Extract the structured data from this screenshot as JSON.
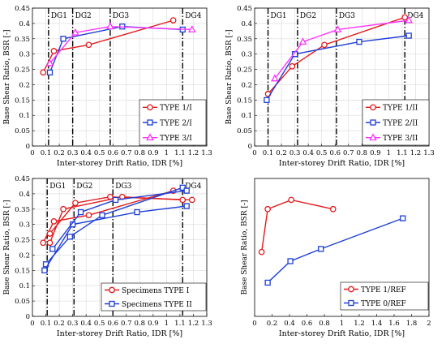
{
  "colors": {
    "red": "#e41a1c",
    "blue": "#1f3fd6",
    "magenta": "#ff33ff",
    "dg_line": "#000000"
  },
  "chart_data": [
    {
      "type": "line",
      "title": "",
      "xlabel": "Inter-storey Drift Ratio, IDR [%]",
      "ylabel": "Base Shear Ratio, BSR [-]",
      "xlim": [
        0,
        1.3
      ],
      "ylim": [
        0,
        0.45
      ],
      "xticks": [
        "0",
        "0.1",
        "0.2",
        "0.3",
        "0.4",
        "0.5",
        "0.6",
        "0.7",
        "0.8",
        "0.9",
        "1",
        "1.1",
        "1.2",
        "1.3"
      ],
      "yticks": [
        "0",
        "0.05",
        "0.1",
        "0.15",
        "0.2",
        "0.25",
        "0.3",
        "0.35",
        "0.4",
        "0.45"
      ],
      "grid": true,
      "legend_position": "bottom-right",
      "damage_lines": [
        {
          "label": "DG1",
          "x": 0.12
        },
        {
          "label": "DG2",
          "x": 0.3
        },
        {
          "label": "DG3",
          "x": 0.58
        },
        {
          "label": "DG4",
          "x": 1.12
        }
      ],
      "series": [
        {
          "name": "TYPE 1/I",
          "color": "#e41a1c",
          "marker": "circle",
          "x": [
            0.08,
            0.16,
            0.42,
            1.05
          ],
          "y": [
            0.24,
            0.31,
            0.33,
            0.41
          ]
        },
        {
          "name": "TYPE 2/I",
          "color": "#1f3fd6",
          "marker": "square",
          "x": [
            0.13,
            0.23,
            0.67,
            1.12
          ],
          "y": [
            0.24,
            0.35,
            0.39,
            0.38
          ]
        },
        {
          "name": "TYPE 3/I",
          "color": "#ff33ff",
          "marker": "triangle",
          "x": [
            0.13,
            0.32,
            0.58,
            1.19
          ],
          "y": [
            0.27,
            0.37,
            0.39,
            0.38
          ]
        }
      ]
    },
    {
      "type": "line",
      "title": "",
      "xlabel": "Inter-storey Drift Ratio, IDR [%]",
      "ylabel": "Base Shear Ratio, BSR [-]",
      "xlim": [
        0,
        1.3
      ],
      "ylim": [
        0,
        0.45
      ],
      "xticks": [
        "0",
        "0.1",
        "0.2",
        "0.3",
        "0.4",
        "0.5",
        "0.6",
        "0.7",
        "0.8",
        "0.9",
        "1",
        "1.1",
        "1.2",
        "1.3"
      ],
      "yticks": [
        "0",
        "0.05",
        "0.1",
        "0.15",
        "0.2",
        "0.25",
        "0.3",
        "0.35",
        "0.4",
        "0.45"
      ],
      "grid": true,
      "legend_position": "bottom-right",
      "damage_lines": [
        {
          "label": "DG1",
          "x": 0.1
        },
        {
          "label": "DG2",
          "x": 0.32
        },
        {
          "label": "DG3",
          "x": 0.61
        },
        {
          "label": "DG4",
          "x": 1.12
        }
      ],
      "series": [
        {
          "name": "TYPE 1/II",
          "color": "#e41a1c",
          "marker": "circle",
          "x": [
            0.1,
            0.28,
            0.52,
            1.12
          ],
          "y": [
            0.17,
            0.26,
            0.33,
            0.42
          ]
        },
        {
          "name": "TYPE 2/II",
          "color": "#1f3fd6",
          "marker": "square",
          "x": [
            0.09,
            0.3,
            0.78,
            1.15
          ],
          "y": [
            0.15,
            0.3,
            0.34,
            0.36
          ]
        },
        {
          "name": "TYPE 3/II",
          "color": "#ff33ff",
          "marker": "triangle",
          "x": [
            0.15,
            0.36,
            0.62,
            1.15
          ],
          "y": [
            0.22,
            0.34,
            0.38,
            0.41
          ]
        }
      ]
    },
    {
      "type": "line",
      "title": "",
      "xlabel": "Inter-storey Drift Ratio, IDR [%]",
      "ylabel": "Base Shear Ratio, BSR [-]",
      "xlim": [
        0,
        1.3
      ],
      "ylim": [
        0,
        0.45
      ],
      "xticks": [
        "0",
        "0.1",
        "0.2",
        "0.3",
        "0.4",
        "0.5",
        "0.6",
        "0.7",
        "0.8",
        "0.9",
        "1",
        "1.1",
        "1.2",
        "1.3"
      ],
      "yticks": [
        "0",
        "0.05",
        "0.1",
        "0.15",
        "0.2",
        "0.25",
        "0.3",
        "0.35",
        "0.4",
        "0.45"
      ],
      "grid": true,
      "legend_position": "bottom-right",
      "damage_lines": [
        {
          "label": "DG1",
          "x": 0.11
        },
        {
          "label": "DG2",
          "x": 0.31
        },
        {
          "label": "DG3",
          "x": 0.6
        },
        {
          "label": "DG4",
          "x": 1.12
        }
      ],
      "series": [
        {
          "name": "Specimens TYPE I",
          "color": "#e41a1c",
          "marker": "circle",
          "group": "TYPE I",
          "x": [
            0.08,
            0.16,
            0.42,
            1.05
          ],
          "y": [
            0.24,
            0.31,
            0.33,
            0.41
          ]
        },
        {
          "name": "",
          "color": "#e41a1c",
          "marker": "circle",
          "group": "TYPE I",
          "x": [
            0.13,
            0.32,
            0.58,
            1.19
          ],
          "y": [
            0.27,
            0.37,
            0.39,
            0.38
          ]
        },
        {
          "name": "",
          "color": "#e41a1c",
          "marker": "circle",
          "group": "TYPE I",
          "x": [
            0.13,
            0.23,
            0.67,
            1.12
          ],
          "y": [
            0.24,
            0.35,
            0.39,
            0.38
          ]
        },
        {
          "name": "Specimens TYPE II",
          "color": "#1f3fd6",
          "marker": "square",
          "group": "TYPE II",
          "x": [
            0.1,
            0.28,
            0.52,
            1.12
          ],
          "y": [
            0.17,
            0.26,
            0.33,
            0.42
          ]
        },
        {
          "name": "",
          "color": "#1f3fd6",
          "marker": "square",
          "group": "TYPE II",
          "x": [
            0.09,
            0.3,
            0.78,
            1.15
          ],
          "y": [
            0.15,
            0.3,
            0.34,
            0.36
          ]
        },
        {
          "name": "",
          "color": "#1f3fd6",
          "marker": "square",
          "group": "TYPE II",
          "x": [
            0.15,
            0.36,
            0.62,
            1.15
          ],
          "y": [
            0.22,
            0.34,
            0.38,
            0.41
          ]
        }
      ]
    },
    {
      "type": "line",
      "title": "",
      "xlabel": "Inter-storey Drift Ratio, IDR [%]",
      "ylabel": "Base Shear Ratio, BSR [-]",
      "xlim": [
        0,
        2
      ],
      "ylim": [
        0,
        0.45
      ],
      "xticks": [
        "0",
        "0.2",
        "0.4",
        "0.6",
        "0.8",
        "1",
        "1.2",
        "1.4",
        "1.6",
        "1.8",
        "2"
      ],
      "yticks": [],
      "grid": false,
      "legend_position": "bottom-right",
      "damage_lines": [],
      "series": [
        {
          "name": "TYPE 1/REF",
          "color": "#e41a1c",
          "marker": "circle",
          "x": [
            0.08,
            0.15,
            0.42,
            0.9
          ],
          "y": [
            0.21,
            0.35,
            0.38,
            0.35
          ]
        },
        {
          "name": "TYPE 0/REF",
          "color": "#1f3fd6",
          "marker": "square",
          "x": [
            0.15,
            0.41,
            0.76,
            1.7
          ],
          "y": [
            0.11,
            0.18,
            0.22,
            0.32
          ]
        }
      ]
    }
  ]
}
